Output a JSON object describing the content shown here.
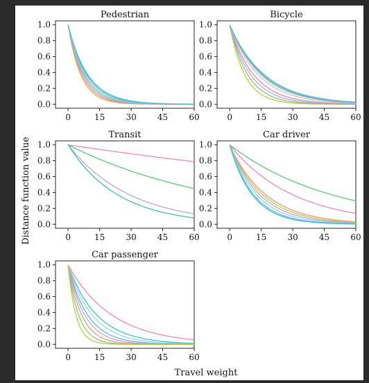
{
  "page": {
    "background": "#2b2b2b",
    "figure_background": "#ffffff"
  },
  "figure": {
    "ylabel": "Distance function value",
    "xlabel": "Travel weight"
  },
  "chart_data": [
    {
      "type": "line",
      "title": "Pedestrian",
      "xlim": [
        -6,
        60
      ],
      "ylim": [
        -0.05,
        1.05
      ],
      "xticks": [
        "0",
        "15",
        "30",
        "45",
        "60"
      ],
      "yticks": [
        "0.0",
        "0.2",
        "0.4",
        "0.6",
        "0.8",
        "1.0"
      ],
      "series": [
        {
          "color": "#c9c33a",
          "halflife": 4.2
        },
        {
          "color": "#e88aa8",
          "halflife": 4.6
        },
        {
          "color": "#b9a3e6",
          "halflife": 5.0
        },
        {
          "color": "#7fc77f",
          "halflife": 5.4
        },
        {
          "color": "#9fd1e6",
          "halflife": 5.8
        },
        {
          "color": "#3cc2c9",
          "halflife": 6.2
        },
        {
          "color": "#5fb7e6",
          "halflife": 6.6
        }
      ]
    },
    {
      "type": "line",
      "title": "Bicycle",
      "xlim": [
        -6,
        60
      ],
      "ylim": [
        -0.05,
        1.05
      ],
      "xticks": [
        "0",
        "15",
        "30",
        "45",
        "60"
      ],
      "yticks": [
        "0.0",
        "0.2",
        "0.4",
        "0.6",
        "0.8",
        "1.0"
      ],
      "series": [
        {
          "color": "#c9c33a",
          "halflife": 5.0
        },
        {
          "color": "#7fc77f",
          "halflife": 6.0
        },
        {
          "color": "#b9a3e6",
          "halflife": 7.0
        },
        {
          "color": "#e88aa8",
          "halflife": 8.0
        },
        {
          "color": "#9fd1e6",
          "halflife": 9.5
        },
        {
          "color": "#e89a7a",
          "halflife": 10.5
        },
        {
          "color": "#3cc2c9",
          "halflife": 11.0
        },
        {
          "color": "#5fb7e6",
          "halflife": 11.5
        }
      ]
    },
    {
      "type": "line",
      "title": "Transit",
      "xlim": [
        -6,
        60
      ],
      "ylim": [
        -0.05,
        1.05
      ],
      "xticks": [
        "0",
        "15",
        "30",
        "45",
        "60"
      ],
      "yticks": [
        "0.0",
        "0.2",
        "0.4",
        "0.6",
        "0.8",
        "1.0"
      ],
      "series": [
        {
          "color": "#f08aa8",
          "halflife": 175
        },
        {
          "color": "#5cc77a",
          "halflife": 52
        },
        {
          "color": "#b9a3e6",
          "halflife": 20.5
        },
        {
          "color": "#3cc2a8",
          "halflife": 16.5
        }
      ]
    },
    {
      "type": "line",
      "title": "Car driver",
      "xlim": [
        -6,
        60
      ],
      "ylim": [
        -0.05,
        1.05
      ],
      "xticks": [
        "0",
        "15",
        "30",
        "45",
        "60"
      ],
      "yticks": [
        "0.0",
        "0.2",
        "0.4",
        "0.6",
        "0.8",
        "1.0"
      ],
      "series": [
        {
          "color": "#5cc77a",
          "halflife": 34
        },
        {
          "color": "#f08aa8",
          "halflife": 21
        },
        {
          "color": "#e89a7a",
          "halflife": 12
        },
        {
          "color": "#c9c33a",
          "halflife": 11
        },
        {
          "color": "#b9a3e6",
          "halflife": 10
        },
        {
          "color": "#9fd1e6",
          "halflife": 9
        },
        {
          "color": "#5fb7e6",
          "halflife": 8
        },
        {
          "color": "#3cc2c9",
          "halflife": 7.5
        }
      ]
    },
    {
      "type": "line",
      "title": "Car passenger",
      "xlim": [
        -6,
        60
      ],
      "ylim": [
        -0.05,
        1.05
      ],
      "xticks": [
        "0",
        "15",
        "30",
        "45",
        "60"
      ],
      "yticks": [
        "0.0",
        "0.2",
        "0.4",
        "0.6",
        "0.8",
        "1.0"
      ],
      "series": [
        {
          "color": "#f08aa8",
          "halflife": 14.5
        },
        {
          "color": "#3cc2c9",
          "halflife": 9.5
        },
        {
          "color": "#9fd1e6",
          "halflife": 8
        },
        {
          "color": "#5fb7e6",
          "halflife": 6.5
        },
        {
          "color": "#b9a3e6",
          "halflife": 5.5
        },
        {
          "color": "#e89a7a",
          "halflife": 4.5
        },
        {
          "color": "#7fc77f",
          "halflife": 3.5
        },
        {
          "color": "#c9c33a",
          "halflife": 2.6
        }
      ]
    }
  ]
}
